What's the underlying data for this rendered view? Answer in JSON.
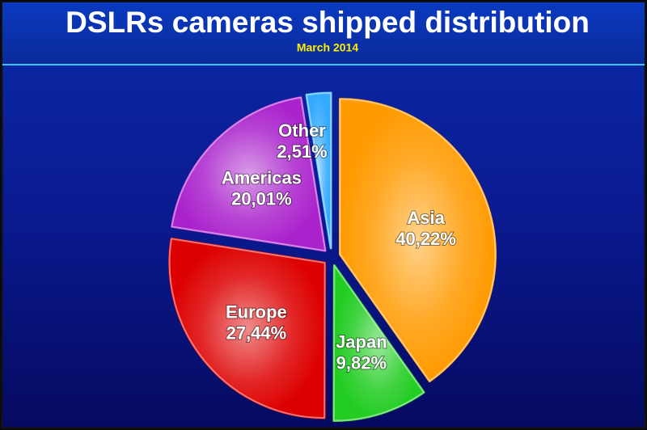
{
  "chart_data": {
    "type": "pie",
    "title": "DSLRs cameras shipped distribution",
    "subtitle": "March 2014",
    "categories": [
      "Asia",
      "Japan",
      "Europe",
      "Americas",
      "Other"
    ],
    "values": [
      40.22,
      9.82,
      27.44,
      20.01,
      2.51
    ],
    "value_labels": [
      "40,22%",
      "9,82%",
      "27,44%",
      "20,01%",
      "2,51%"
    ],
    "colors": [
      "#ff9a00",
      "#22cc22",
      "#dd0000",
      "#aa22cc",
      "#33aaff"
    ]
  }
}
